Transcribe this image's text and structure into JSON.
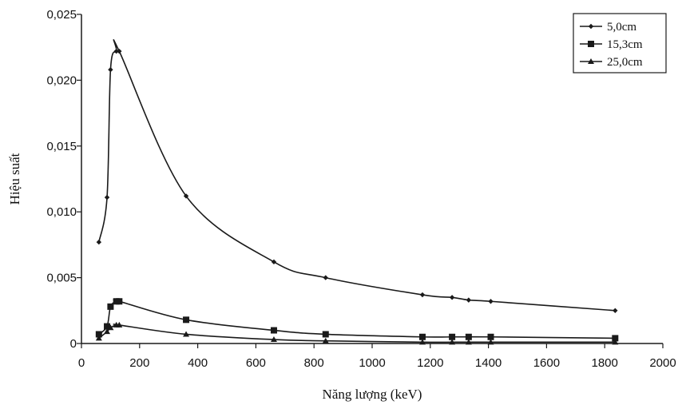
{
  "chart_data": {
    "type": "line",
    "title": "",
    "xlabel": "Năng lượng (keV)",
    "ylabel": "Hiệu suất",
    "xlim": [
      0,
      2000
    ],
    "ylim": [
      0,
      0.025
    ],
    "x_ticks": [
      0,
      200,
      400,
      600,
      800,
      1000,
      1200,
      1400,
      1600,
      1800,
      2000
    ],
    "x_tick_labels": [
      "0",
      "200",
      "400",
      "600",
      "800",
      "1000",
      "1200",
      "1400",
      "1600",
      "1800",
      "2000"
    ],
    "y_ticks": [
      0,
      0.005,
      0.01,
      0.015,
      0.02,
      0.025
    ],
    "y_tick_labels": [
      "0",
      "0,005",
      "0,010",
      "0,015",
      "0,020",
      "0,025"
    ],
    "grid": false,
    "legend_position": "top-right",
    "series": [
      {
        "name": "5,0cm",
        "marker": "diamond",
        "x": [
          60,
          88,
          100,
          120,
          130,
          360,
          662,
          840,
          1173,
          1275,
          1332,
          1408,
          1836
        ],
        "y": [
          0.0077,
          0.0111,
          0.0208,
          0.0222,
          0.0222,
          0.0112,
          0.0062,
          0.005,
          0.0037,
          0.0035,
          0.0033,
          0.0032,
          0.0025
        ]
      },
      {
        "name": "15,3cm",
        "marker": "square",
        "x": [
          60,
          88,
          100,
          120,
          130,
          360,
          662,
          840,
          1173,
          1275,
          1332,
          1408,
          1836
        ],
        "y": [
          0.0007,
          0.0013,
          0.0028,
          0.0032,
          0.0032,
          0.0018,
          0.001,
          0.0007,
          0.0005,
          0.0005,
          0.0005,
          0.0005,
          0.0004
        ]
      },
      {
        "name": "25,0cm",
        "marker": "triangle",
        "x": [
          60,
          88,
          100,
          120,
          130,
          360,
          662,
          840,
          1173,
          1275,
          1332,
          1408,
          1836
        ],
        "y": [
          0.0004,
          0.0009,
          0.0012,
          0.0014,
          0.0014,
          0.0007,
          0.0003,
          0.0002,
          0.0001,
          0.0001,
          0.0001,
          0.0001,
          0.0001
        ]
      }
    ]
  }
}
